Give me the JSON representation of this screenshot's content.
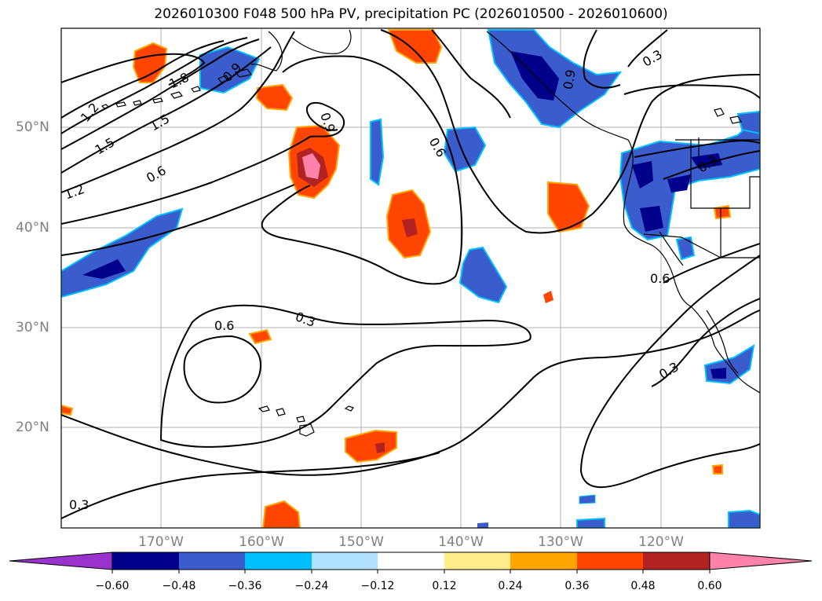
{
  "title": "2026010300 F048 500 hPa PV, precipitation PC (2026010500 - 2026010600)",
  "lat_labels": [
    "50°N",
    "40°N",
    "30°N",
    "20°N"
  ],
  "lon_labels": [
    "170°W",
    "160°W",
    "150°W",
    "140°W",
    "130°W",
    "120°W"
  ],
  "contour_labels": [
    "1.2",
    "1.8",
    "0.9",
    "1.5",
    "1.5",
    "0.6",
    "1.2",
    "0.9",
    "0.6",
    "0.3",
    "0.9",
    "0.3",
    "0.6",
    "0.3",
    "0.6",
    "0.3",
    "0.3"
  ],
  "colorbar": {
    "ticks": [
      "−0.60",
      "−0.48",
      "−0.36",
      "−0.24",
      "−0.12",
      "0.12",
      "0.24",
      "0.36",
      "0.48",
      "0.60"
    ],
    "colors": [
      "#9a32cd",
      "#00008b",
      "#3a5ccc",
      "#00bfff",
      "#b0e2ff",
      "#ffffff",
      "#ffec8b",
      "#ffa500",
      "#ff4500",
      "#b22222",
      "#ff82ab"
    ]
  },
  "colors": {
    "contour": "#000000",
    "coast": "#000000",
    "grid": "#b0b0b0",
    "precip_neg_dark": "#00008b",
    "precip_neg": "#3a5ccc",
    "precip_neg_light": "#00bfff",
    "precip_pos_light": "#ffec8b",
    "precip_pos": "#ff4500",
    "precip_pos_dark": "#b22222",
    "precip_pos_max": "#ff82ab"
  }
}
